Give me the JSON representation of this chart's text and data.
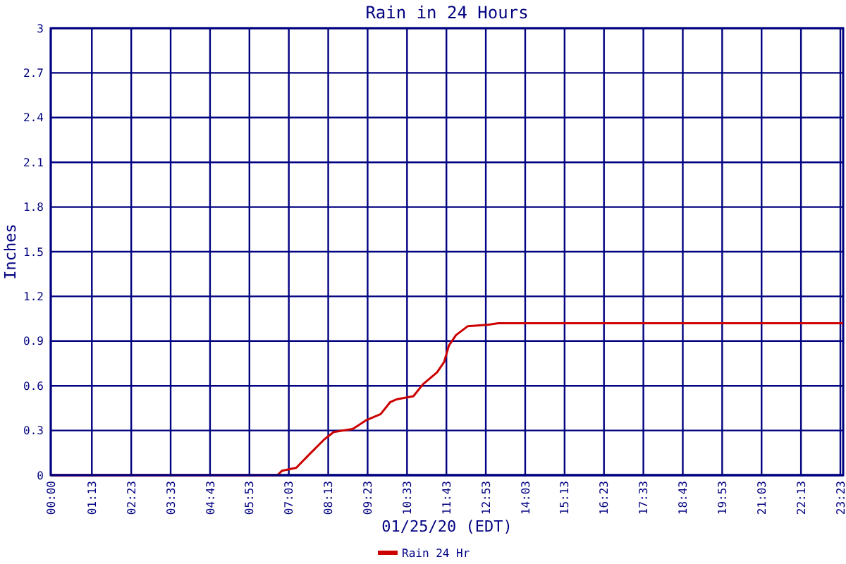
{
  "chart_data": {
    "type": "line",
    "title": "Rain in 24 Hours",
    "xlabel": "01/25/20 (EDT)",
    "ylabel": "Inches",
    "xlim": [
      0,
      23.4667
    ],
    "ylim": [
      0,
      3
    ],
    "xticks": [
      {
        "value": 0,
        "label": "00:00"
      },
      {
        "value": 1.2167,
        "label": "01:13"
      },
      {
        "value": 2.3833,
        "label": "02:23"
      },
      {
        "value": 3.55,
        "label": "03:33"
      },
      {
        "value": 4.7167,
        "label": "04:43"
      },
      {
        "value": 5.8833,
        "label": "05:53"
      },
      {
        "value": 7.05,
        "label": "07:03"
      },
      {
        "value": 8.2167,
        "label": "08:13"
      },
      {
        "value": 9.3833,
        "label": "09:23"
      },
      {
        "value": 10.55,
        "label": "10:33"
      },
      {
        "value": 11.7167,
        "label": "11:43"
      },
      {
        "value": 12.8833,
        "label": "12:53"
      },
      {
        "value": 14.05,
        "label": "14:03"
      },
      {
        "value": 15.2167,
        "label": "15:13"
      },
      {
        "value": 16.3833,
        "label": "16:23"
      },
      {
        "value": 17.55,
        "label": "17:33"
      },
      {
        "value": 18.7167,
        "label": "18:43"
      },
      {
        "value": 19.8833,
        "label": "19:53"
      },
      {
        "value": 21.05,
        "label": "21:03"
      },
      {
        "value": 22.2167,
        "label": "22:13"
      },
      {
        "value": 23.3833,
        "label": "23:23"
      }
    ],
    "yticks": [
      0,
      0.3,
      0.6,
      0.9,
      1.2,
      1.5,
      1.8,
      2.1,
      2.4,
      2.7,
      3
    ],
    "grid": true,
    "legend": "bottom",
    "marker": "none",
    "line_style": "solid",
    "series": [
      {
        "name": "Rain 24 Hr",
        "color": "#cc0000",
        "x": [
          0,
          6.71,
          6.85,
          7.27,
          7.68,
          8.1,
          8.38,
          8.94,
          9.35,
          9.77,
          10.05,
          10.26,
          10.74,
          11.02,
          11.44,
          11.65,
          11.79,
          12.0,
          12.35,
          12.97,
          13.25,
          23.4667
        ],
        "values": [
          0,
          0,
          0.03,
          0.05,
          0.145,
          0.24,
          0.29,
          0.31,
          0.37,
          0.41,
          0.49,
          0.51,
          0.53,
          0.61,
          0.69,
          0.76,
          0.87,
          0.94,
          1.0,
          1.01,
          1.02,
          1.02
        ]
      }
    ]
  }
}
